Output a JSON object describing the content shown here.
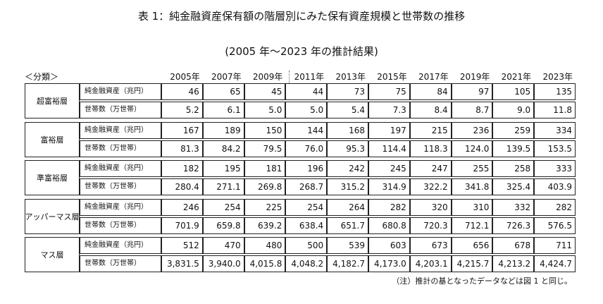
{
  "header": {
    "title": "表 1：純金融資産保有額の階層別にみた保有資産規模と世帯数の推移",
    "subtitle": "(2005 年～2023 年の推計結果)"
  },
  "table": {
    "category_header": "＜分類＞",
    "years": [
      "2005年",
      "2007年",
      "2009年",
      "2011年",
      "2013年",
      "2015年",
      "2017年",
      "2019年",
      "2021年",
      "2023年"
    ],
    "groups": [
      {
        "name": "超富裕層",
        "rows": [
          {
            "label": "純金融資産（兆円）",
            "values": [
              "46",
              "65",
              "45",
              "44",
              "73",
              "75",
              "84",
              "97",
              "105",
              "135"
            ]
          },
          {
            "label": "世帯数（万世帯）",
            "values": [
              "5.2",
              "6.1",
              "5.0",
              "5.0",
              "5.4",
              "7.3",
              "8.4",
              "8.7",
              "9.0",
              "11.8"
            ]
          }
        ]
      },
      {
        "name": "富裕層",
        "rows": [
          {
            "label": "純金融資産（兆円）",
            "values": [
              "167",
              "189",
              "150",
              "144",
              "168",
              "197",
              "215",
              "236",
              "259",
              "334"
            ]
          },
          {
            "label": "世帯数（万世帯）",
            "values": [
              "81.3",
              "84.2",
              "79.5",
              "76.0",
              "95.3",
              "114.4",
              "118.3",
              "124.0",
              "139.5",
              "153.5"
            ]
          }
        ]
      },
      {
        "name": "準富裕層",
        "rows": [
          {
            "label": "純金融資産（兆円）",
            "values": [
              "182",
              "195",
              "181",
              "196",
              "242",
              "245",
              "247",
              "255",
              "258",
              "333"
            ]
          },
          {
            "label": "世帯数（万世帯）",
            "values": [
              "280.4",
              "271.1",
              "269.8",
              "268.7",
              "315.2",
              "314.9",
              "322.2",
              "341.8",
              "325.4",
              "403.9"
            ]
          }
        ]
      },
      {
        "name": "アッパーマス層",
        "rows": [
          {
            "label": "純金融資産（兆円）",
            "values": [
              "246",
              "254",
              "225",
              "254",
              "264",
              "282",
              "320",
              "310",
              "332",
              "282"
            ]
          },
          {
            "label": "世帯数（万世帯）",
            "values": [
              "701.9",
              "659.8",
              "639.2",
              "638.4",
              "651.7",
              "680.8",
              "720.3",
              "712.1",
              "726.3",
              "576.5"
            ]
          }
        ]
      },
      {
        "name": "マス層",
        "rows": [
          {
            "label": "純金融資産（兆円）",
            "values": [
              "512",
              "470",
              "480",
              "500",
              "539",
              "603",
              "673",
              "656",
              "678",
              "711"
            ]
          },
          {
            "label": "世帯数（万世帯）",
            "values": [
              "3,831.5",
              "3,940.0",
              "4,015.8",
              "4,048.2",
              "4,182.7",
              "4,173.0",
              "4,203.1",
              "4,215.7",
              "4,213.2",
              "4,424.7"
            ]
          }
        ]
      }
    ]
  },
  "note": "（注）推計の基となったデータなどは図 1 と同じ。"
}
